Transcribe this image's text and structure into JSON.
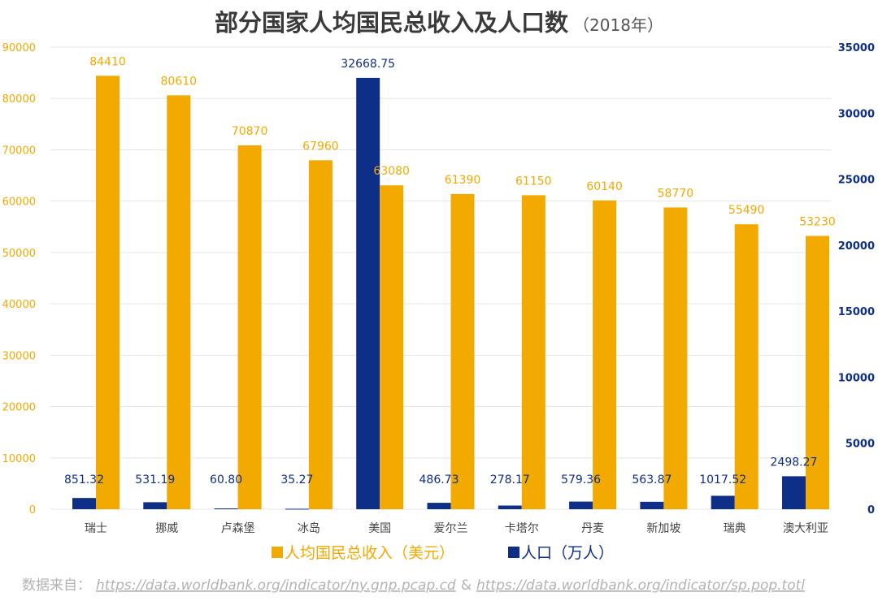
{
  "chart_data": {
    "type": "bar",
    "title": "部分国家人均国民总收入及人口数",
    "subtitle": "（2018年）",
    "categories": [
      "瑞士",
      "挪威",
      "卢森堡",
      "冰岛",
      "美国",
      "爱尔兰",
      "卡塔尔",
      "丹麦",
      "新加坡",
      "瑞典",
      "澳大利亚"
    ],
    "series": [
      {
        "name": "人均国民总收入（美元）",
        "axis": "left",
        "color": "#f2a900",
        "values": [
          84410,
          80610,
          70870,
          67960,
          63080,
          61390,
          61150,
          60140,
          58770,
          55490,
          53230
        ],
        "labels": [
          "84410",
          "80610",
          "70870",
          "67960",
          "63080",
          "61390",
          "61150",
          "60140",
          "58770",
          "55490",
          "53230"
        ]
      },
      {
        "name": "人口（万人）",
        "axis": "right",
        "color": "#0d2f87",
        "values": [
          851.32,
          531.19,
          60.8,
          35.27,
          32668.75,
          486.73,
          278.17,
          579.36,
          563.87,
          1017.52,
          2498.27
        ],
        "labels": [
          "851.32",
          "531.19",
          "60.80",
          "35.27",
          "32668.75",
          "486.73",
          "278.17",
          "579.36",
          "563.87",
          "1017.52",
          "2498.27"
        ]
      }
    ],
    "y_left": {
      "min": 0,
      "max": 90000,
      "ticks": [
        "0",
        "10000",
        "20000",
        "30000",
        "40000",
        "50000",
        "60000",
        "70000",
        "80000",
        "90000"
      ]
    },
    "y_right": {
      "min": 0,
      "max": 35000,
      "ticks": [
        "0",
        "5000",
        "10000",
        "15000",
        "20000",
        "25000",
        "30000",
        "35000"
      ]
    },
    "grid": true,
    "legend_position": "bottom"
  },
  "source": {
    "prefix": "数据来自：",
    "link1": "https://data.worldbank.org/indicator/ny.gnp.pcap.cd",
    "separator": "&",
    "link2": "https://data.worldbank.org/indicator/sp.pop.totl"
  }
}
